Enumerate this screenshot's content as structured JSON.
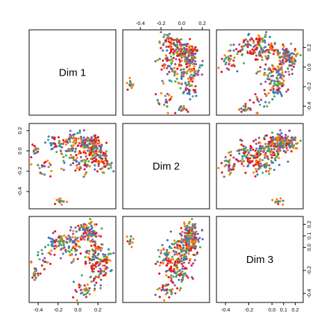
{
  "chart_data": {
    "type": "scatter",
    "title": "",
    "variables": [
      "Dim 1",
      "Dim 2",
      "Dim 3"
    ],
    "ranges": {
      "Dim 1": [
        -0.47,
        0.36
      ],
      "Dim 2": [
        -0.55,
        0.25
      ],
      "Dim 3": [
        -0.46,
        0.25
      ]
    },
    "ticks": {
      "Dim 1": {
        "values": [
          -0.4,
          -0.2,
          0.0,
          0.2
        ],
        "labels": [
          "-0.4",
          "-0.2",
          "0.0",
          "0.2"
        ]
      },
      "Dim 2": {
        "values": [
          -0.4,
          -0.2,
          0.0,
          0.2
        ],
        "labels": [
          "-0.4",
          "-0.2",
          "0.0",
          "0.2"
        ]
      },
      "Dim 3": {
        "values": [
          -0.4,
          -0.2,
          0.0,
          0.1,
          0.2
        ],
        "labels": [
          "-0.4",
          "-0.2",
          "0.0",
          "0.1",
          "0.2"
        ]
      }
    },
    "colors": [
      "#ff7f00",
      "#e41a1c",
      "#4daf4a",
      "#984ea3",
      "#377eb8"
    ],
    "clusters": [
      {
        "center": [
          0.1,
          0.08,
          0.15
        ],
        "spread": [
          0.05,
          0.04,
          0.04
        ],
        "n": 70
      },
      {
        "center": [
          0.18,
          0.05,
          -0.02
        ],
        "spread": [
          0.04,
          0.06,
          0.08
        ],
        "n": 50
      },
      {
        "center": [
          0.26,
          -0.12,
          -0.12
        ],
        "spread": [
          0.04,
          0.05,
          0.06
        ],
        "n": 40
      },
      {
        "center": [
          -0.04,
          0.12,
          0.07
        ],
        "spread": [
          0.06,
          0.04,
          0.04
        ],
        "n": 40
      },
      {
        "center": [
          -0.22,
          0.07,
          0.05
        ],
        "spread": [
          0.05,
          0.05,
          0.04
        ],
        "n": 30
      },
      {
        "center": [
          -0.42,
          0.02,
          -0.24
        ],
        "spread": [
          0.02,
          0.02,
          0.02
        ],
        "n": 15
      },
      {
        "center": [
          -0.18,
          -0.5,
          0.05
        ],
        "spread": [
          0.02,
          0.02,
          0.02
        ],
        "n": 12
      },
      {
        "center": [
          0.05,
          -0.15,
          -0.35
        ],
        "spread": [
          0.06,
          0.06,
          0.05
        ],
        "n": 30
      },
      {
        "center": [
          -0.05,
          -0.05,
          0.0
        ],
        "spread": [
          0.07,
          0.07,
          0.05
        ],
        "n": 40
      },
      {
        "center": [
          0.2,
          -0.05,
          -0.25
        ],
        "spread": [
          0.05,
          0.05,
          0.06
        ],
        "n": 30
      },
      {
        "center": [
          -0.35,
          -0.15,
          -0.1
        ],
        "spread": [
          0.05,
          0.04,
          0.05
        ],
        "n": 20
      },
      {
        "center": [
          0.1,
          0.0,
          -0.1
        ],
        "spread": [
          0.06,
          0.05,
          0.06
        ],
        "n": 40
      }
    ]
  }
}
